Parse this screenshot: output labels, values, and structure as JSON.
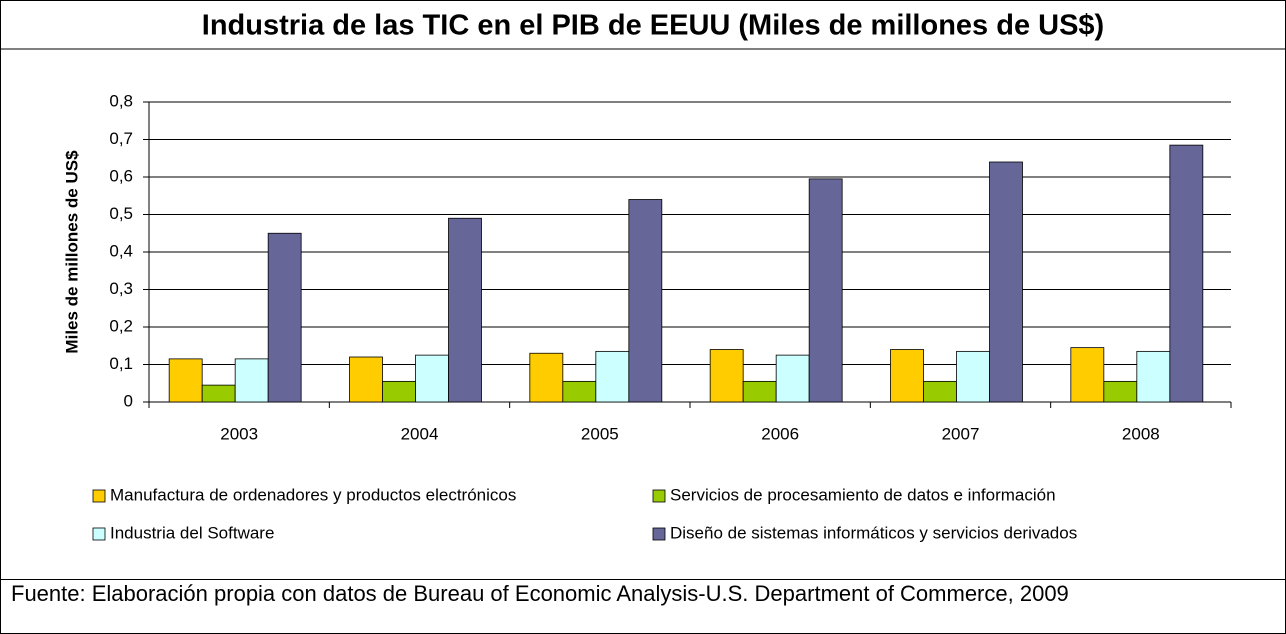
{
  "chart_data": {
    "type": "bar",
    "title": "Industria de las TIC en el PIB de EEUU (Miles de millones de US$)",
    "y_label": "Miles de millones de US$",
    "categories": [
      "2003",
      "2004",
      "2005",
      "2006",
      "2007",
      "2008"
    ],
    "series": [
      {
        "name": "Manufactura de ordenadores y productos electrónicos",
        "color": "#ffcc00",
        "values": [
          0.115,
          0.12,
          0.13,
          0.14,
          0.14,
          0.145
        ]
      },
      {
        "name": "Servicios de procesamiento de datos e información",
        "color": "#99cc00",
        "values": [
          0.045,
          0.055,
          0.055,
          0.055,
          0.055,
          0.055
        ]
      },
      {
        "name": "Industria del Software",
        "color": "#ccffff",
        "values": [
          0.115,
          0.125,
          0.135,
          0.125,
          0.135,
          0.135
        ]
      },
      {
        "name": "Diseño de sistemas informáticos y servicios derivados",
        "color": "#666699",
        "values": [
          0.45,
          0.49,
          0.54,
          0.595,
          0.64,
          0.685
        ]
      }
    ],
    "ylim": [
      0,
      0.8
    ],
    "yticks": [
      0,
      {
        "value": 0.1,
        "label": "0,1"
      },
      {
        "value": 0.2,
        "label": "0,2"
      },
      {
        "value": 0.3,
        "label": "0,3"
      },
      {
        "value": 0.4,
        "label": "0,4"
      },
      {
        "value": 0.5,
        "label": "0,5"
      },
      {
        "value": 0.6,
        "label": "0,6"
      },
      {
        "value": 0.7,
        "label": "0,7"
      },
      {
        "value": 0.8,
        "label": "0,8"
      }
    ],
    "grid": true,
    "legend": "bottom",
    "note": "Fuente: Elaboración propia con datos de Bureau of Economic Analysis-U.S. Department of Commerce, 2009"
  }
}
